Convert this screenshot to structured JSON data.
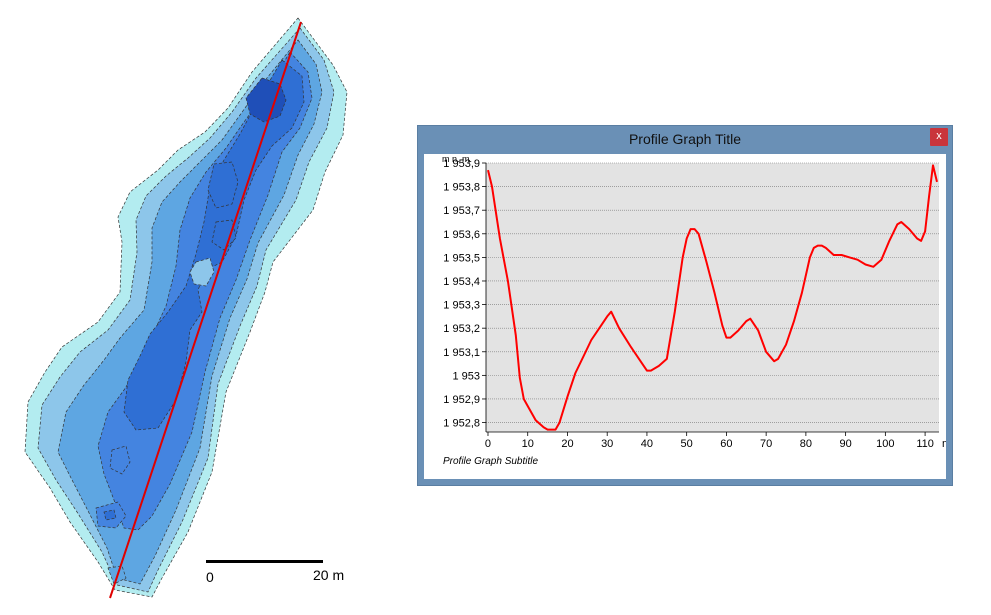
{
  "scalebar": {
    "start_label": "0",
    "end_label": "20 m"
  },
  "window": {
    "title": "Profile Graph Title",
    "close_label": "x"
  },
  "colors": {
    "profile_line": "#ff0000",
    "plot_background": "#e3e3e3",
    "window_frame": "#6a90b6",
    "contour_fills": [
      "#b3ecf0",
      "#8dc6ea",
      "#5ea6e2",
      "#4484e0",
      "#2f6fd4",
      "#1f4fb8"
    ]
  },
  "chart_data": {
    "type": "line",
    "title": "Profile Graph Title",
    "subtitle": "Profile Graph Subtitle",
    "ylabel": "m n. m.",
    "xlabel_unit": "m",
    "xlim": [
      -0.5,
      113.5
    ],
    "ylim": [
      1952.76,
      1953.9
    ],
    "x_ticks": [
      "0",
      "10",
      "20",
      "30",
      "40",
      "50",
      "60",
      "70",
      "80",
      "90",
      "100",
      "110"
    ],
    "y_ticks": [
      "1 952,8",
      "1 952,9",
      "1 953",
      "1 953,1",
      "1 953,2",
      "1 953,3",
      "1 953,4",
      "1 953,5",
      "1 953,6",
      "1 953,7",
      "1 953,8",
      "1 953,9"
    ],
    "y_tick_values": [
      1952.8,
      1952.9,
      1953.0,
      1953.1,
      1953.2,
      1953.3,
      1953.4,
      1953.5,
      1953.6,
      1953.7,
      1953.8,
      1953.9
    ],
    "grid": true,
    "series": [
      {
        "x": [
          0,
          1,
          3,
          5,
          7,
          8,
          9,
          10,
          12,
          14,
          15,
          16,
          17,
          18,
          20,
          22,
          24,
          26,
          28,
          30,
          31,
          33,
          36,
          38,
          40,
          41,
          43,
          45,
          47,
          49,
          50,
          51,
          52,
          53,
          55,
          57,
          59,
          60,
          61,
          63,
          65,
          66,
          68,
          70,
          72,
          73,
          75,
          77,
          79,
          81,
          82,
          83,
          84,
          85,
          87,
          89,
          91,
          93,
          95,
          97,
          99,
          101,
          103,
          104,
          106,
          108,
          109,
          110,
          111,
          112,
          113
        ],
        "y": [
          1953.87,
          1953.8,
          1953.58,
          1953.4,
          1953.17,
          1952.99,
          1952.9,
          1952.87,
          1952.81,
          1952.78,
          1952.77,
          1952.77,
          1952.77,
          1952.8,
          1952.91,
          1953.01,
          1953.08,
          1953.15,
          1953.2,
          1953.25,
          1953.27,
          1953.2,
          1953.12,
          1953.07,
          1953.02,
          1953.02,
          1953.04,
          1953.07,
          1953.27,
          1953.5,
          1953.58,
          1953.62,
          1953.62,
          1953.6,
          1953.48,
          1953.35,
          1953.21,
          1953.16,
          1953.16,
          1953.19,
          1953.23,
          1953.24,
          1953.19,
          1953.1,
          1953.06,
          1953.07,
          1953.13,
          1953.23,
          1953.35,
          1953.5,
          1953.54,
          1953.55,
          1953.55,
          1953.54,
          1953.51,
          1953.51,
          1953.5,
          1953.49,
          1953.47,
          1953.46,
          1953.49,
          1953.57,
          1953.64,
          1953.65,
          1953.62,
          1953.58,
          1953.57,
          1953.61,
          1953.76,
          1953.89,
          1953.82
        ]
      }
    ]
  }
}
